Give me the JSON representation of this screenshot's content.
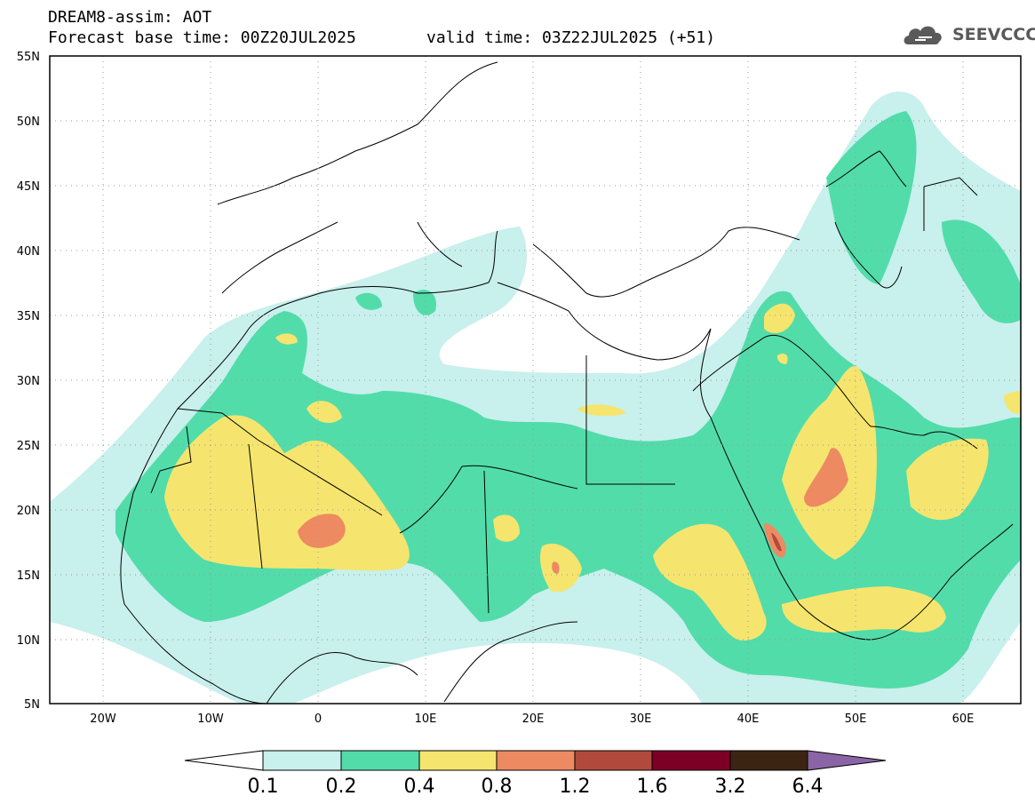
{
  "header": {
    "title_line1": "DREAM8-assim: AOT",
    "forecast_base": "Forecast base time: 00Z20JUL2025",
    "valid_time": "valid time: 03Z22JUL2025 (+51)"
  },
  "logo": {
    "text": "SEEVCCC",
    "color": "#5a5a5a"
  },
  "map": {
    "lat_labels": [
      "55N",
      "50N",
      "45N",
      "40N",
      "35N",
      "30N",
      "25N",
      "20N",
      "15N",
      "10N",
      "5N"
    ],
    "lon_labels": [
      "20W",
      "10W",
      "0",
      "10E",
      "20E",
      "30E",
      "40E",
      "50E",
      "60E"
    ],
    "lat_range": [
      5,
      55
    ],
    "lon_range": [
      -25,
      65
    ]
  },
  "colorbar": {
    "labels": [
      "0.1",
      "0.2",
      "0.4",
      "0.8",
      "1.2",
      "1.6",
      "3.2",
      "6.4"
    ],
    "colors": [
      "#c8f0ec",
      "#52dcaa",
      "#f5e56e",
      "#ed8a62",
      "#b04a3c",
      "#7c0026",
      "#3c2413",
      "#8a64a4"
    ]
  }
}
